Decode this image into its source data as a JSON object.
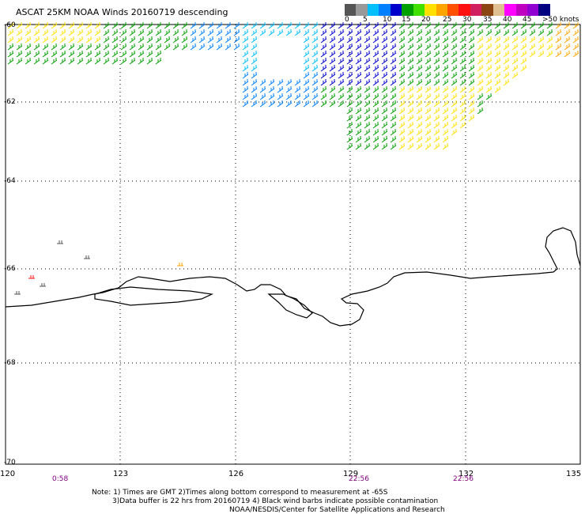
{
  "header": {
    "title": "ASCAT 25KM NOAA Winds 20160719 descending"
  },
  "speed_scale": {
    "colors": [
      "#555555",
      "#999999",
      "#00bfff",
      "#0080ff",
      "#0000cd",
      "#00a000",
      "#40e000",
      "#ffe000",
      "#ffa500",
      "#ff5000",
      "#ff1010",
      "#d02060",
      "#8b4513",
      "#e0c090",
      "#ff00ff",
      "#c000c0",
      "#9000d0",
      "#000080"
    ],
    "labels": [
      "0",
      "5",
      "10",
      "15",
      "20",
      "25",
      "30",
      "35",
      "40",
      "45",
      ">50 knots"
    ]
  },
  "axes": {
    "lat_labels": [
      "-60",
      "-62",
      "-64",
      "-66",
      "-68",
      "-70"
    ],
    "lon_labels": [
      "120",
      "123",
      "126",
      "129",
      "132",
      "135"
    ]
  },
  "pass_times": [
    "0:58",
    "22:56",
    "22:56"
  ],
  "notes": [
    "Note: 1) Times are GMT 2)Times along bottom correspond to measurement at -65S",
    "3)Data buffer is 22 hrs from 20160719 4) Black wind barbs indicate possible contamination",
    "NOAA/NESDIS/Center for Satellite Applications and Research"
  ],
  "map_style": {
    "coast_color": "#000000",
    "grid_color": "#000000"
  }
}
